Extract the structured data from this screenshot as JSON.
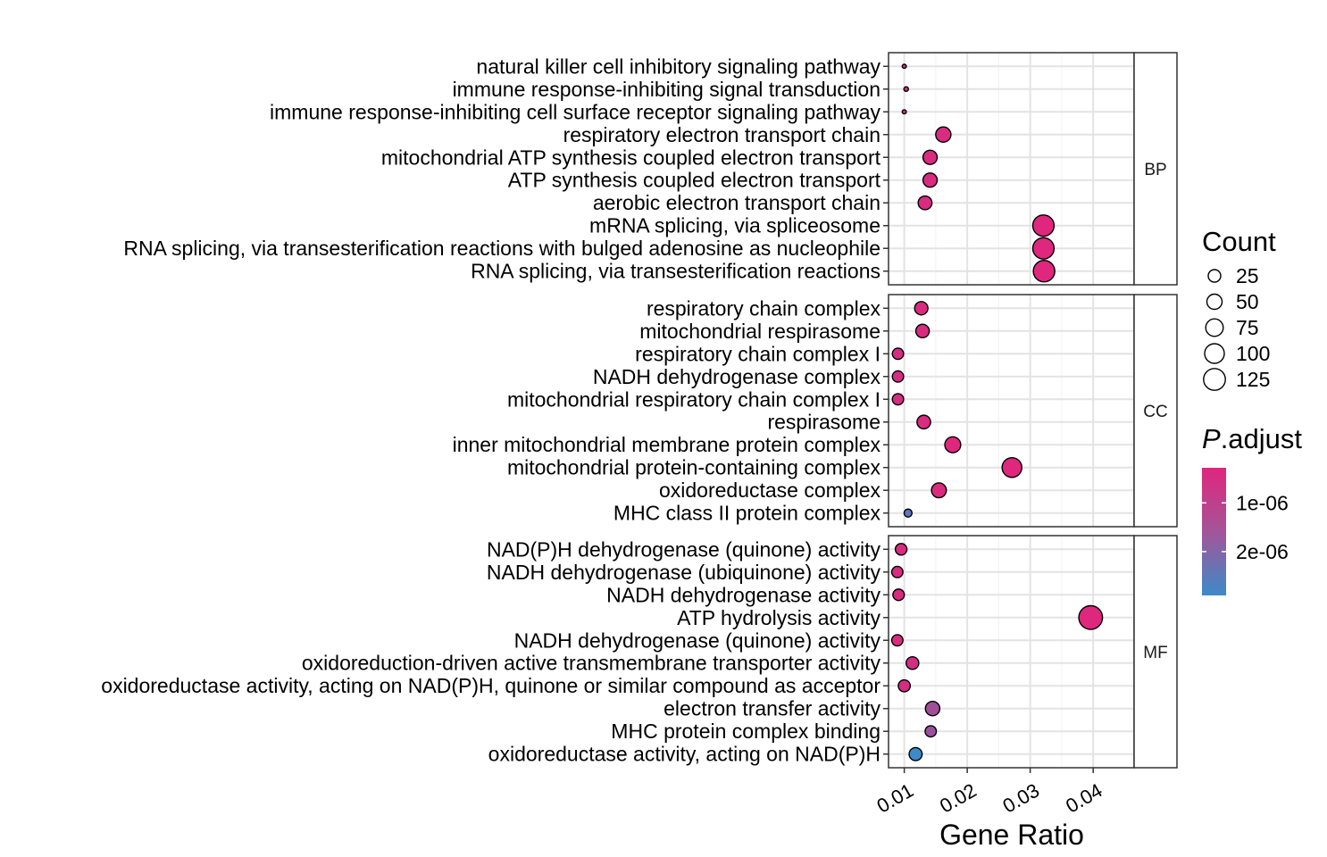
{
  "chart_data": {
    "type": "scatter",
    "xlabel": "Gene Ratio",
    "ylabel": "",
    "xlim": [
      0.0075,
      0.0465
    ],
    "x_ticks": [
      0.01,
      0.02,
      0.03,
      0.04
    ],
    "x_tick_labels": [
      "0.01",
      "0.02",
      "0.03",
      "0.04"
    ],
    "grid": true,
    "colors": {
      "low": "#e0267d",
      "high": "#3d8ac8",
      "mid": "#a35598"
    },
    "legend": {
      "size_title": "Count",
      "size_values": [
        25,
        50,
        75,
        100,
        125
      ],
      "size_labels": [
        "25",
        "50",
        "75",
        "100",
        "125"
      ],
      "color_title_italic": "P",
      "color_title_rest": ".adjust",
      "color_ticks": [
        1e-06,
        2e-06
      ],
      "color_tick_labels": [
        "1e-06",
        "2e-06"
      ],
      "color_range": [
        2.8e-07,
        2.9e-06
      ]
    },
    "facets": [
      {
        "name": "BP",
        "terms": [
          {
            "label": "natural killer cell inhibitory signaling pathway",
            "ratio": 0.01,
            "count": 4,
            "padj": 5e-07
          },
          {
            "label": "immune response-inhibiting signal transduction",
            "ratio": 0.0103,
            "count": 5,
            "padj": 5e-07
          },
          {
            "label": "immune response-inhibiting cell surface receptor signaling pathway",
            "ratio": 0.01,
            "count": 4,
            "padj": 5e-07
          },
          {
            "label": "respiratory electron transport chain",
            "ratio": 0.0162,
            "count": 55,
            "padj": 4e-07
          },
          {
            "label": "mitochondrial ATP synthesis coupled electron transport",
            "ratio": 0.0141,
            "count": 48,
            "padj": 4e-07
          },
          {
            "label": "ATP synthesis coupled electron transport",
            "ratio": 0.0141,
            "count": 48,
            "padj": 4e-07
          },
          {
            "label": "aerobic electron transport chain",
            "ratio": 0.0133,
            "count": 45,
            "padj": 4e-07
          },
          {
            "label": "mRNA splicing, via spliceosome",
            "ratio": 0.0321,
            "count": 108,
            "padj": 3e-07
          },
          {
            "label": "RNA splicing, via transesterification reactions with bulged adenosine as nucleophile",
            "ratio": 0.0321,
            "count": 108,
            "padj": 3e-07
          },
          {
            "label": "RNA splicing, via transesterification reactions",
            "ratio": 0.0322,
            "count": 109,
            "padj": 3e-07
          }
        ]
      },
      {
        "name": "CC",
        "terms": [
          {
            "label": "respiratory chain complex",
            "ratio": 0.0127,
            "count": 42,
            "padj": 4e-07
          },
          {
            "label": "mitochondrial respirasome",
            "ratio": 0.0129,
            "count": 43,
            "padj": 4e-07
          },
          {
            "label": "respiratory chain complex I",
            "ratio": 0.009,
            "count": 30,
            "padj": 5e-07
          },
          {
            "label": "NADH dehydrogenase complex",
            "ratio": 0.009,
            "count": 30,
            "padj": 5e-07
          },
          {
            "label": "mitochondrial respiratory chain complex I",
            "ratio": 0.009,
            "count": 30,
            "padj": 5e-07
          },
          {
            "label": "respirasome",
            "ratio": 0.0131,
            "count": 44,
            "padj": 4e-07
          },
          {
            "label": "inner mitochondrial membrane protein complex",
            "ratio": 0.0177,
            "count": 60,
            "padj": 3e-07
          },
          {
            "label": "mitochondrial protein-containing complex",
            "ratio": 0.0271,
            "count": 92,
            "padj": 3e-07
          },
          {
            "label": "oxidoreductase complex",
            "ratio": 0.0155,
            "count": 52,
            "padj": 4e-07
          },
          {
            "label": "MHC class II protein complex",
            "ratio": 0.0106,
            "count": 15,
            "padj": 2.4e-06
          }
        ]
      },
      {
        "name": "MF",
        "terms": [
          {
            "label": "NAD(P)H dehydrogenase (quinone) activity",
            "ratio": 0.0095,
            "count": 32,
            "padj": 4e-07
          },
          {
            "label": "NADH dehydrogenase (ubiquinone) activity",
            "ratio": 0.0089,
            "count": 30,
            "padj": 4e-07
          },
          {
            "label": "NADH dehydrogenase activity",
            "ratio": 0.0091,
            "count": 31,
            "padj": 4e-07
          },
          {
            "label": "ATP hydrolysis activity",
            "ratio": 0.0396,
            "count": 133,
            "padj": 3e-07
          },
          {
            "label": "NADH dehydrogenase (quinone) activity",
            "ratio": 0.0089,
            "count": 30,
            "padj": 4e-07
          },
          {
            "label": "oxidoreduction-driven active transmembrane transporter activity",
            "ratio": 0.0113,
            "count": 38,
            "padj": 5e-07
          },
          {
            "label": "oxidoreductase activity, acting on NAD(P)H, quinone or similar compound as acceptor",
            "ratio": 0.01,
            "count": 34,
            "padj": 5e-07
          },
          {
            "label": "electron transfer activity",
            "ratio": 0.0145,
            "count": 49,
            "padj": 1.3e-06
          },
          {
            "label": "MHC protein complex binding",
            "ratio": 0.0142,
            "count": 30,
            "padj": 1.4e-06
          },
          {
            "label": "oxidoreductase activity, acting on NAD(P)H",
            "ratio": 0.0118,
            "count": 40,
            "padj": 2.9e-06
          }
        ]
      }
    ]
  }
}
